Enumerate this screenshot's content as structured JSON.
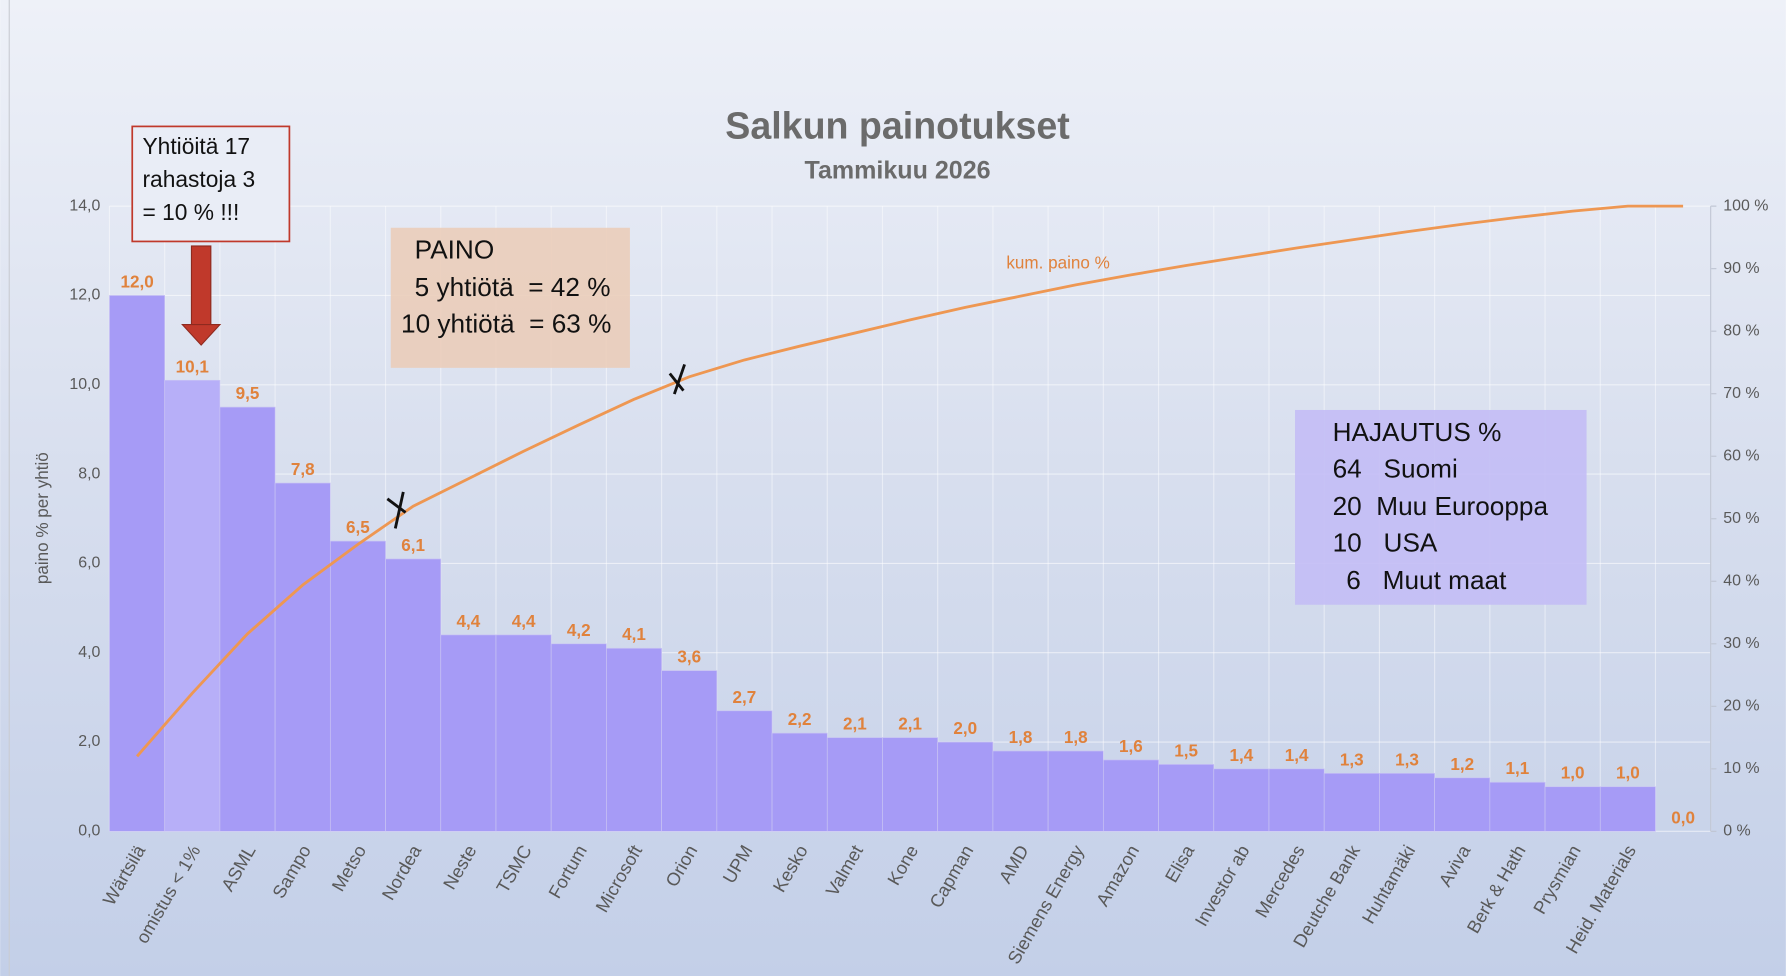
{
  "chart_data": {
    "type": "bar",
    "title": "Salkun painotukset",
    "subtitle": "Tammikuu 2026",
    "y_label": "paino % per yhtiö",
    "categories": [
      "Wärtsilä",
      "omistus < 1%",
      "ASML",
      "Sampo",
      "Metso",
      "Nordea",
      "Neste",
      "TSMC",
      "Fortum",
      "Microsoft",
      "Orion",
      "UPM",
      "Kesko",
      "Valmet",
      "Kone",
      "Capman",
      "AMD",
      "Siemens Energy",
      "Amazon",
      "Elisa",
      "Investor ab",
      "Mercedes",
      "Deutche Bank",
      "Huhtamäki",
      "Aviva",
      "Berk & Hath",
      "Prysmian",
      "Heid. Materials",
      null
    ],
    "series": [
      {
        "type": "bar",
        "values": [
          12.0,
          10.1,
          9.5,
          7.8,
          6.5,
          6.1,
          4.4,
          4.4,
          4.2,
          4.1,
          3.6,
          2.7,
          2.2,
          2.1,
          2.1,
          2.0,
          1.8,
          1.8,
          1.6,
          1.5,
          1.4,
          1.4,
          1.3,
          1.3,
          1.2,
          1.1,
          1.0,
          1.0,
          0.0
        ],
        "value_labels": [
          "12,0",
          "10,1",
          "9,5",
          "7,8",
          "6,5",
          "6,1",
          "4,4",
          "4,4",
          "4,2",
          "4,1",
          "3,6",
          "2,7",
          "2,2",
          "2,1",
          "2,1",
          "2,0",
          "1,8",
          "1,8",
          "1,6",
          "1,5",
          "1,4",
          "1,4",
          "1,3",
          "1,3",
          "1,2",
          "1,1",
          "1,0",
          "1,0",
          "0,0"
        ],
        "color": "#a69bf6",
        "colors": [
          "#a69bf6",
          "#b7aff8",
          "#a69bf6",
          "#a69bf6",
          "#a69bf6",
          "#a69bf6",
          "#a69bf6",
          "#a69bf6",
          "#a69bf6",
          "#a69bf6",
          "#a69bf6",
          "#a69bf6",
          "#a69bf6",
          "#a69bf6",
          "#a69bf6",
          "#a69bf6",
          "#a69bf6",
          "#a69bf6",
          "#a69bf6",
          "#a69bf6",
          "#a69bf6",
          "#a69bf6",
          "#a69bf6",
          "#a69bf6",
          "#a69bf6",
          "#a69bf6",
          "#a69bf6",
          "#a69bf6",
          "#a69bf6"
        ]
      },
      {
        "type": "line",
        "name": "kum. paino %",
        "axis": "y2",
        "color": "#ee9752",
        "values": [
          12.0,
          22.1,
          31.6,
          39.4,
          45.9,
          52.0,
          56.4,
          60.8,
          65.0,
          69.1,
          72.7,
          75.4,
          77.6,
          79.7,
          81.8,
          83.8,
          85.6,
          87.4,
          89.0,
          90.5,
          91.9,
          93.3,
          94.6,
          95.9,
          97.1,
          98.2,
          99.2,
          100,
          100
        ]
      }
    ],
    "ylim": [
      0,
      14
    ],
    "yticks": [
      {
        "value": 0,
        "label": "0,0"
      },
      {
        "value": 2,
        "label": "2,0"
      },
      {
        "value": 4,
        "label": "4,0"
      },
      {
        "value": 6,
        "label": "6,0"
      },
      {
        "value": 8,
        "label": "8,0"
      },
      {
        "value": 10,
        "label": "10,0"
      },
      {
        "value": 12,
        "label": "12,0"
      },
      {
        "value": 14,
        "label": "14,0"
      }
    ],
    "y2lim": [
      0,
      100
    ],
    "y2ticks": [
      {
        "value": 0,
        "label": "0 %"
      },
      {
        "value": 10,
        "label": "10 %"
      },
      {
        "value": 20,
        "label": "20 %"
      },
      {
        "value": 30,
        "label": "30 %"
      },
      {
        "value": 40,
        "label": "40 %"
      },
      {
        "value": 50,
        "label": "50 %"
      },
      {
        "value": 60,
        "label": "60 %"
      },
      {
        "value": 70,
        "label": "70 %"
      },
      {
        "value": 80,
        "label": "80 %"
      },
      {
        "value": 90,
        "label": "90 %"
      },
      {
        "value": 100,
        "label": "100 %"
      }
    ],
    "grid": true,
    "annotations": [
      {
        "lines": [
          "Yhtiöitä 17",
          "rahastoja 3",
          "= 10 % !!!"
        ]
      },
      {
        "lines": [
          "PAINO",
          "5 yhtiötä  = 42 %",
          "10 yhtiötä  = 63 %"
        ]
      },
      {
        "lines": [
          "HAJAUTUS %",
          "64   Suomi",
          "20  Muu Eurooppa",
          "10   USA",
          "6   Muut maat"
        ]
      }
    ]
  }
}
